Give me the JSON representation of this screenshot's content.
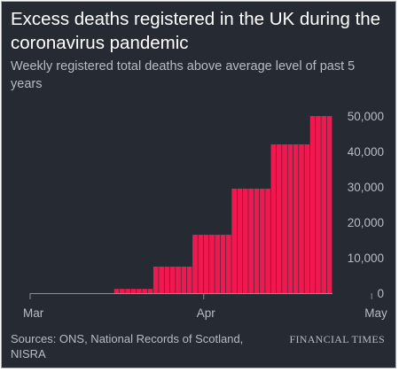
{
  "title": "Excess deaths registered in the UK during the coronavirus pandemic",
  "subtitle": "Weekly registered total deaths above average level of past 5 years",
  "source": "Sources: ONS, National Records of Scotland, NISRA",
  "brand": "FINANCIAL TIMES",
  "colors": {
    "background": "#262a33",
    "bar": "#f0194f",
    "text": "#b7bcc5",
    "title": "#ffffff",
    "axis": "#8a8f98"
  },
  "chart_data": {
    "type": "bar",
    "title": "Excess deaths registered in the UK during the coronavirus pandemic",
    "subtitle": "Weekly registered total deaths above average level of past 5 years",
    "xlabel": "",
    "ylabel": "",
    "x_tick_labels": [
      {
        "label": "Mar",
        "day_index": 0
      },
      {
        "label": "Apr",
        "day_index": 31
      },
      {
        "label": "May",
        "day_index": 61
      }
    ],
    "y_ticks": [
      0,
      10000,
      20000,
      30000,
      40000,
      50000
    ],
    "y_tick_labels": [
      "0",
      "10,000",
      "20,000",
      "30,000",
      "40,000",
      "50,000"
    ],
    "ylim": [
      0,
      52000
    ],
    "grid": false,
    "legend": "none",
    "series": [
      {
        "values": [
          0,
          0,
          0,
          0,
          0,
          0,
          0,
          0,
          0,
          0,
          0,
          0,
          0,
          0,
          0,
          1200,
          1200,
          1200,
          1200,
          1200,
          1200,
          1200,
          7500,
          7500,
          7500,
          7500,
          7500,
          7500,
          7500,
          16500,
          16500,
          16500,
          16500,
          16500,
          16500,
          16500,
          29500,
          29500,
          29500,
          29500,
          29500,
          29500,
          29500,
          42000,
          42000,
          42000,
          42000,
          42000,
          42000,
          42000,
          50000,
          50000,
          50000,
          50000
        ]
      }
    ]
  }
}
